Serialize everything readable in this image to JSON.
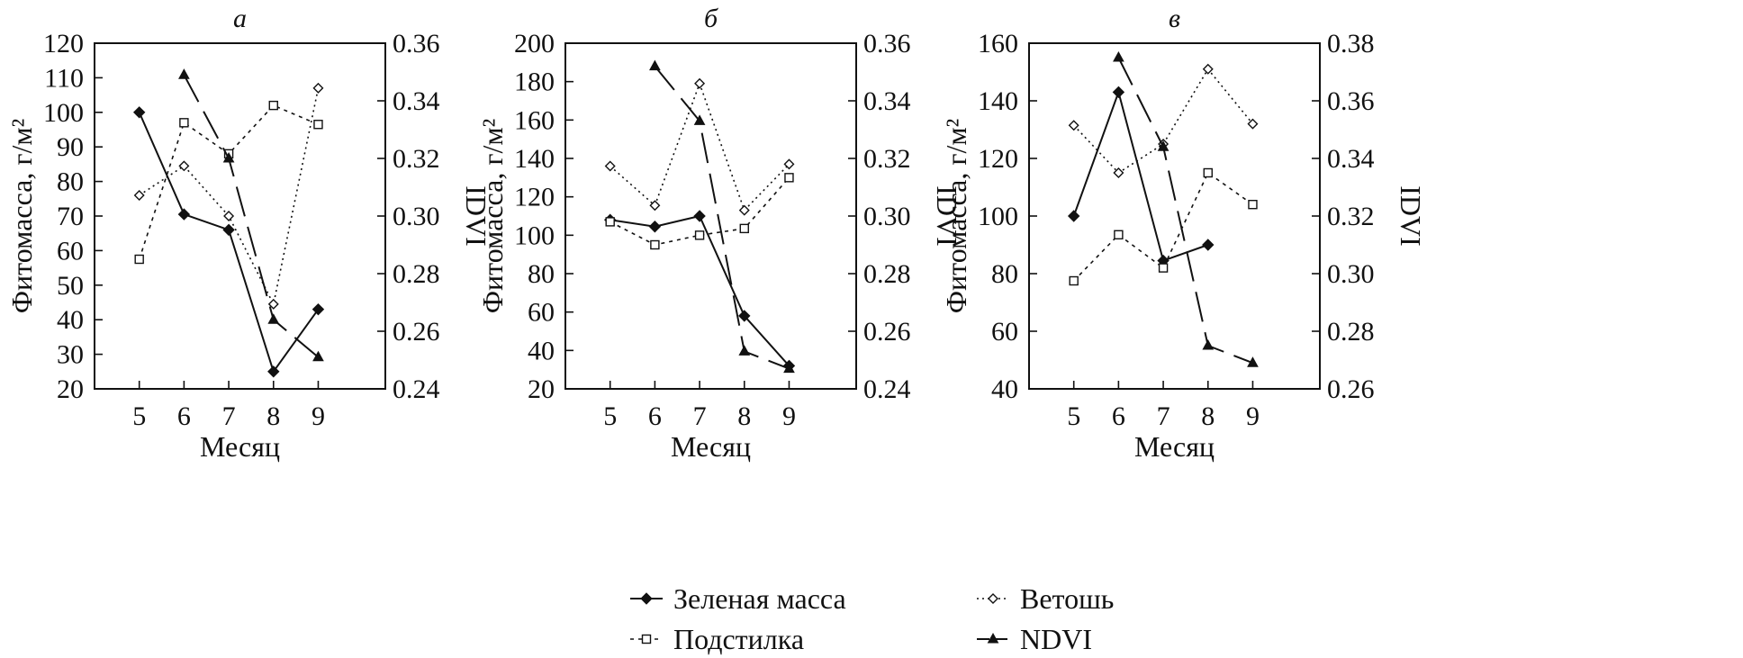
{
  "chart_data": [
    {
      "type": "line",
      "panel_label": "а",
      "xlabel": "Месяц",
      "ylabel": "Фитомасса, г/м²",
      "y2label": "IDVI",
      "x_ticks": [
        5,
        6,
        7,
        8,
        9
      ],
      "ylim": [
        20,
        120
      ],
      "y_ticks": [
        20,
        30,
        40,
        50,
        60,
        70,
        80,
        90,
        100,
        110,
        120
      ],
      "y2lim": [
        0.24,
        0.36
      ],
      "y2_ticks": [
        "0.24",
        "0.26",
        "0.28",
        "0.30",
        "0.32",
        "0.34",
        "0.36"
      ],
      "series": [
        {
          "key": "green",
          "axis": "left",
          "x": [
            5,
            6,
            7,
            8,
            9
          ],
          "values": [
            100,
            70.5,
            66,
            25,
            43
          ]
        },
        {
          "key": "litter",
          "axis": "left",
          "x": [
            5,
            6,
            7,
            8,
            9
          ],
          "values": [
            57.5,
            97,
            88,
            102,
            96.5
          ]
        },
        {
          "key": "dead",
          "axis": "left",
          "x": [
            5,
            6,
            7,
            8,
            9
          ],
          "values": [
            76,
            84.5,
            70,
            44.5,
            107
          ]
        },
        {
          "key": "ndvi",
          "axis": "right",
          "x": [
            6,
            7,
            8,
            9
          ],
          "values": [
            0.349,
            0.32,
            0.264,
            0.251
          ]
        }
      ]
    },
    {
      "type": "line",
      "panel_label": "б",
      "xlabel": "Месяц",
      "ylabel": "Фитомасса, г/м²",
      "y2label": "IDVI",
      "x_ticks": [
        5,
        6,
        7,
        8,
        9
      ],
      "ylim": [
        20,
        200
      ],
      "y_ticks": [
        20,
        40,
        60,
        80,
        100,
        120,
        140,
        160,
        180,
        200
      ],
      "y2lim": [
        0.24,
        0.36
      ],
      "y2_ticks": [
        "0.24",
        "0.26",
        "0.28",
        "0.30",
        "0.32",
        "0.34",
        "0.36"
      ],
      "series": [
        {
          "key": "green",
          "axis": "left",
          "x": [
            5,
            6,
            7,
            8,
            9
          ],
          "values": [
            108,
            104.5,
            110,
            58,
            32
          ]
        },
        {
          "key": "litter",
          "axis": "left",
          "x": [
            5,
            6,
            7,
            8,
            9
          ],
          "values": [
            107,
            95,
            100,
            103.5,
            130
          ]
        },
        {
          "key": "dead",
          "axis": "left",
          "x": [
            5,
            6,
            7,
            8,
            9
          ],
          "values": [
            136,
            115.5,
            179,
            113,
            137
          ]
        },
        {
          "key": "ndvi",
          "axis": "right",
          "x": [
            6,
            7,
            8,
            9
          ],
          "values": [
            0.352,
            0.333,
            0.253,
            0.247
          ]
        }
      ]
    },
    {
      "type": "line",
      "panel_label": "в",
      "xlabel": "Месяц",
      "ylabel": "Фитомасса, г/м²",
      "y2label": "IDVI",
      "x_ticks": [
        5,
        6,
        7,
        8,
        9
      ],
      "ylim": [
        40,
        160
      ],
      "y_ticks": [
        40,
        60,
        80,
        100,
        120,
        140,
        160
      ],
      "y2lim": [
        0.26,
        0.38
      ],
      "y2_ticks": [
        "0.26",
        "0.28",
        "0.30",
        "0.32",
        "0.34",
        "0.36",
        "0.38"
      ],
      "series": [
        {
          "key": "green",
          "axis": "left",
          "x": [
            5,
            6,
            7,
            8,
            9
          ],
          "values": [
            100,
            143,
            84.5,
            90,
            null
          ]
        },
        {
          "key": "litter",
          "axis": "left",
          "x": [
            5,
            6,
            7,
            8,
            9
          ],
          "values": [
            77.5,
            93.5,
            82,
            115,
            104
          ]
        },
        {
          "key": "dead",
          "axis": "left",
          "x": [
            5,
            6,
            7,
            8,
            9
          ],
          "values": [
            131.5,
            115,
            125,
            151,
            132
          ]
        },
        {
          "key": "ndvi",
          "axis": "right",
          "x": [
            6,
            7,
            8,
            9
          ],
          "values": [
            0.375,
            0.344,
            0.275,
            0.269
          ]
        }
      ]
    }
  ],
  "legend": [
    {
      "key": "green",
      "label": "Зеленая масса"
    },
    {
      "key": "dead",
      "label": "Ветошь"
    },
    {
      "key": "litter",
      "label": "Подстилка"
    },
    {
      "key": "ndvi",
      "label": "NDVI"
    }
  ],
  "colors": {
    "ink": "#111111",
    "background": "#ffffff"
  }
}
